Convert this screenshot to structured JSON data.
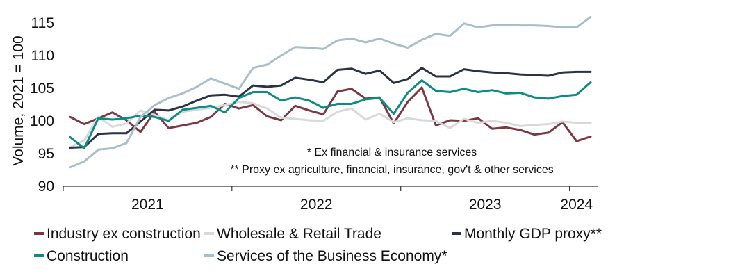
{
  "chart_data": {
    "type": "line",
    "ylabel": "Volume, 2021 = 100",
    "ylim": [
      90,
      117
    ],
    "yticks": [
      90,
      95,
      100,
      105,
      110,
      115
    ],
    "xticks": [
      {
        "label": "2021",
        "x": 5.5
      },
      {
        "label": "2022",
        "x": 17.5
      },
      {
        "label": "2023",
        "x": 29.5
      },
      {
        "label": "2024",
        "x": 36
      }
    ],
    "xlim": [
      0,
      38
    ],
    "year_boundaries": [
      11.5,
      23.5,
      35.5
    ],
    "notes": [
      "* Ex financial & insurance services",
      "** Proxy ex agriculture, financial, insurance, gov't & other services"
    ],
    "grid": false,
    "legend_position": "bottom",
    "series": [
      {
        "name": "Industry ex construction",
        "color": "#7b3843",
        "values": [
          100.6,
          99.5,
          100.4,
          101.3,
          100.1,
          98.3,
          101.4,
          98.9,
          99.3,
          99.7,
          100.6,
          102.6,
          101.9,
          102.4,
          100.7,
          100.1,
          102.3,
          101.6,
          101.0,
          104.5,
          104.9,
          103.4,
          103.6,
          99.6,
          102.9,
          105.1,
          99.3,
          100.1,
          100.0,
          100.4,
          98.8,
          99.0,
          98.6,
          97.9,
          98.2,
          99.8,
          96.9,
          97.6
        ]
      },
      {
        "name": "Wholesale & Retail Trade",
        "color": "#d9d9d9",
        "values": [
          96.0,
          97.0,
          100.6,
          99.1,
          99.6,
          101.6,
          100.9,
          100.1,
          101.4,
          101.7,
          102.0,
          102.4,
          102.9,
          102.7,
          101.9,
          100.5,
          100.3,
          100.1,
          100.0,
          101.4,
          101.9,
          100.2,
          101.1,
          99.8,
          100.4,
          100.1,
          100.0,
          98.9,
          100.3,
          99.7,
          100.0,
          99.7,
          99.2,
          99.4,
          99.5,
          99.9,
          99.7,
          99.7
        ]
      },
      {
        "name": "Monthly GDP proxy**",
        "color": "#2b3245",
        "values": [
          95.9,
          96.0,
          98.0,
          98.1,
          98.1,
          99.9,
          101.7,
          101.6,
          102.2,
          103.1,
          103.9,
          104.0,
          103.7,
          105.4,
          105.2,
          105.4,
          106.6,
          106.3,
          105.9,
          107.8,
          108.0,
          107.2,
          107.7,
          105.8,
          106.4,
          108.1,
          106.8,
          106.8,
          107.9,
          107.6,
          107.4,
          107.3,
          107.1,
          107.0,
          106.9,
          107.4,
          107.5,
          107.5
        ]
      },
      {
        "name": "Construction",
        "color": "#0d8c84",
        "values": [
          97.5,
          95.8,
          100.4,
          100.2,
          100.4,
          100.8,
          100.6,
          100.0,
          101.7,
          102.0,
          102.3,
          101.3,
          103.5,
          104.4,
          104.4,
          103.1,
          103.6,
          103.1,
          102.0,
          102.6,
          102.6,
          103.3,
          103.5,
          101.1,
          104.3,
          106.2,
          104.6,
          104.4,
          104.9,
          104.4,
          104.7,
          104.2,
          104.3,
          103.6,
          103.4,
          103.8,
          104.0,
          105.9
        ]
      },
      {
        "name": "Services of the Business Economy*",
        "color": "#a8bfca",
        "values": [
          92.9,
          93.8,
          95.6,
          95.8,
          96.6,
          100.6,
          102.4,
          103.5,
          104.2,
          105.2,
          106.5,
          105.7,
          104.9,
          108.1,
          108.6,
          110.0,
          111.3,
          111.2,
          111.0,
          112.3,
          112.6,
          112.0,
          112.6,
          111.8,
          111.2,
          112.4,
          113.3,
          113.0,
          114.9,
          114.3,
          114.6,
          114.7,
          114.6,
          114.6,
          114.5,
          114.3,
          114.3,
          115.9
        ]
      }
    ],
    "legend_rows": [
      [
        0,
        1,
        2
      ],
      [
        3,
        4
      ]
    ]
  }
}
